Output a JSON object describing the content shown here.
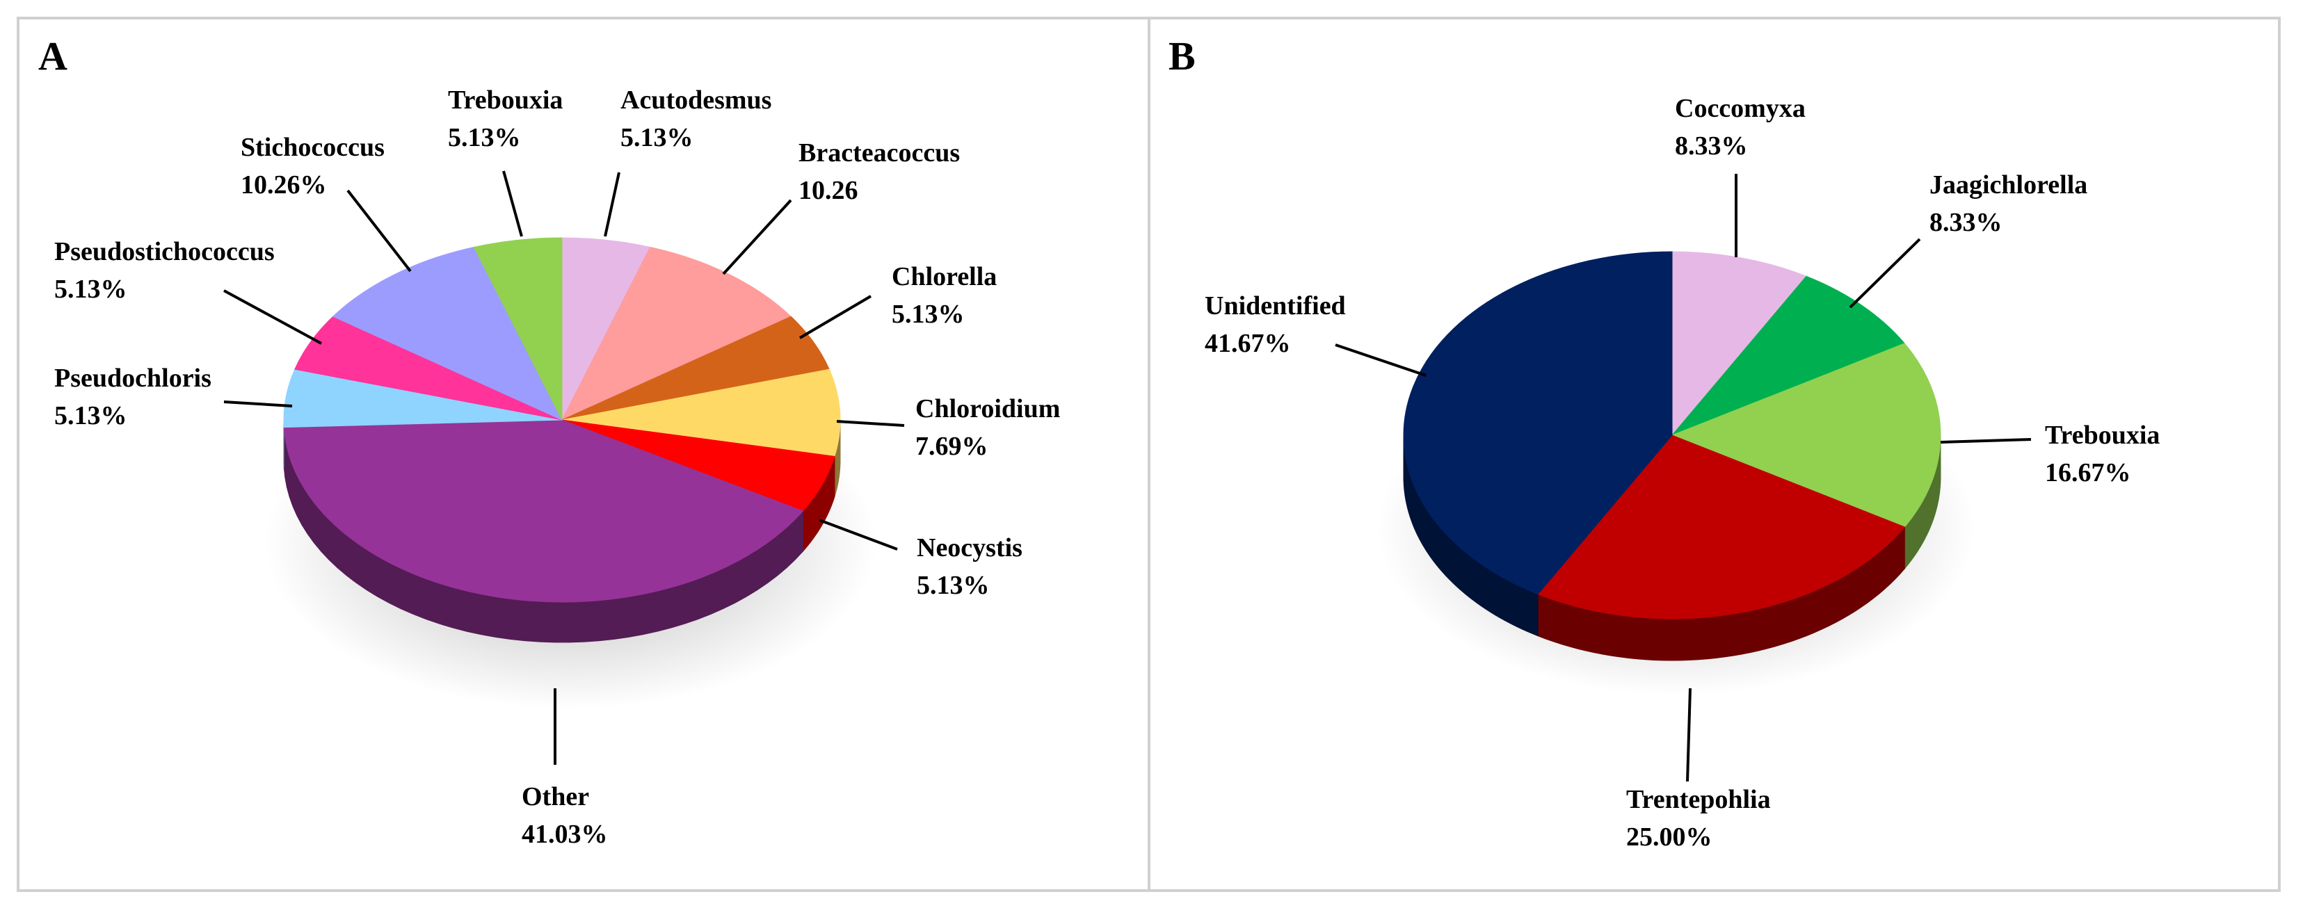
{
  "chart_data": [
    {
      "type": "pie",
      "panel_label": "A",
      "slices": [
        {
          "name": "Acutodesmus",
          "value": 5.13,
          "label_value": "5.13%",
          "color": "#e6b8e6"
        },
        {
          "name": "Bracteacoccus",
          "value": 10.26,
          "label_value": "10.26",
          "color": "#ff9c9c"
        },
        {
          "name": "Chlorella",
          "value": 5.13,
          "label_value": "5.13%",
          "color": "#d4631a"
        },
        {
          "name": "Chloroidium",
          "value": 7.69,
          "label_value": "7.69%",
          "color": "#ffd966"
        },
        {
          "name": "Neocystis",
          "value": 5.13,
          "label_value": "5.13%",
          "color": "#ff0000"
        },
        {
          "name": "Other",
          "value": 41.03,
          "label_value": "41.03%",
          "color": "#963399"
        },
        {
          "name": "Pseudochloris",
          "value": 5.13,
          "label_value": "5.13%",
          "color": "#8fd3ff"
        },
        {
          "name": "Pseudostichococcus",
          "value": 5.13,
          "label_value": "5.13%",
          "color": "#ff3399"
        },
        {
          "name": "Stichococcus",
          "value": 10.26,
          "label_value": "10.26%",
          "color": "#9c9cff"
        },
        {
          "name": "Trebouxia",
          "value": 5.13,
          "label_value": "5.13%",
          "color": "#92d050"
        }
      ]
    },
    {
      "type": "pie",
      "panel_label": "B",
      "slices": [
        {
          "name": "Coccomyxa",
          "value": 8.33,
          "label_value": "8.33%",
          "color": "#e6b8e6"
        },
        {
          "name": "Jaagichlorella",
          "value": 8.33,
          "label_value": "8.33%",
          "color": "#00b050"
        },
        {
          "name": "Trebouxia",
          "value": 16.67,
          "label_value": "16.67%",
          "color": "#92d050"
        },
        {
          "name": "Trentepohlia",
          "value": 25.0,
          "label_value": "25.00%",
          "color": "#c00000"
        },
        {
          "name": "Unidentified",
          "value": 41.67,
          "label_value": "41.67%",
          "color": "#002060"
        }
      ]
    }
  ]
}
